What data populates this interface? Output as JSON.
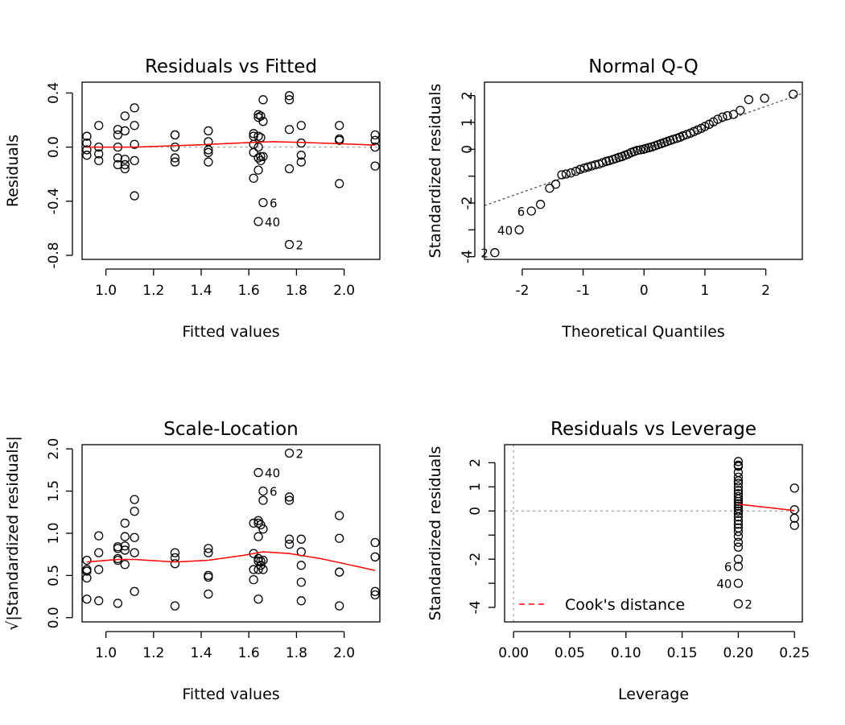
{
  "chart_data": [
    {
      "id": "rvf",
      "type": "scatter",
      "title": "Residuals vs Fitted",
      "xlabel": "Fitted values",
      "ylabel": "Residuals",
      "xlim": [
        0.9,
        2.15
      ],
      "ylim": [
        -0.83,
        0.48
      ],
      "xticks": [
        1.0,
        1.2,
        1.4,
        1.6,
        1.8,
        2.0
      ],
      "xtick_labels": [
        "1.0",
        "1.2",
        "1.4",
        "1.6",
        "1.8",
        "2.0"
      ],
      "yticks": [
        -0.8,
        -0.4,
        0.0,
        0.4
      ],
      "ytick_labels": [
        "-0.8",
        "-0.4",
        "0.0",
        "0.4"
      ],
      "hline": 0,
      "points": [
        [
          0.92,
          0.08
        ],
        [
          0.92,
          0.03
        ],
        [
          0.92,
          -0.02
        ],
        [
          0.92,
          -0.06
        ],
        [
          0.97,
          0.16
        ],
        [
          0.97,
          0.0
        ],
        [
          0.97,
          -0.05
        ],
        [
          0.97,
          -0.1
        ],
        [
          1.05,
          0.13
        ],
        [
          1.05,
          0.09
        ],
        [
          1.05,
          0.0
        ],
        [
          1.05,
          -0.08
        ],
        [
          1.05,
          -0.13
        ],
        [
          1.08,
          0.23
        ],
        [
          1.08,
          0.12
        ],
        [
          1.08,
          -0.09
        ],
        [
          1.08,
          -0.13
        ],
        [
          1.08,
          -0.16
        ],
        [
          1.12,
          0.29
        ],
        [
          1.12,
          0.16
        ],
        [
          1.12,
          0.02
        ],
        [
          1.12,
          -0.1
        ],
        [
          1.12,
          -0.36
        ],
        [
          1.29,
          0.09
        ],
        [
          1.29,
          0.09
        ],
        [
          1.29,
          0.0
        ],
        [
          1.29,
          -0.08
        ],
        [
          1.29,
          -0.11
        ],
        [
          1.43,
          0.12
        ],
        [
          1.43,
          0.04
        ],
        [
          1.43,
          -0.02
        ],
        [
          1.43,
          -0.04
        ],
        [
          1.43,
          -0.11
        ],
        [
          1.62,
          0.1
        ],
        [
          1.62,
          0.08
        ],
        [
          1.62,
          0.02
        ],
        [
          1.62,
          -0.04
        ],
        [
          1.62,
          -0.23
        ],
        [
          1.64,
          0.24
        ],
        [
          1.64,
          0.22
        ],
        [
          1.64,
          0.08
        ],
        [
          1.64,
          0.0
        ],
        [
          1.64,
          -0.08
        ],
        [
          1.64,
          -0.17
        ],
        [
          1.64,
          -0.55
        ],
        [
          1.65,
          0.23
        ],
        [
          1.65,
          0.07
        ],
        [
          1.65,
          -0.07
        ],
        [
          1.65,
          -0.1
        ],
        [
          1.66,
          0.35
        ],
        [
          1.66,
          0.19
        ],
        [
          1.66,
          -0.07
        ],
        [
          1.66,
          -0.41
        ],
        [
          1.77,
          0.38
        ],
        [
          1.77,
          0.35
        ],
        [
          1.77,
          0.13
        ],
        [
          1.77,
          -0.16
        ],
        [
          1.77,
          -0.72
        ],
        [
          1.82,
          0.16
        ],
        [
          1.82,
          0.03
        ],
        [
          1.82,
          -0.06
        ],
        [
          1.82,
          -0.11
        ],
        [
          1.98,
          0.16
        ],
        [
          1.98,
          0.06
        ],
        [
          1.98,
          0.05
        ],
        [
          1.98,
          -0.27
        ],
        [
          2.13,
          0.09
        ],
        [
          2.13,
          0.05
        ],
        [
          2.13,
          0.0
        ],
        [
          2.13,
          -0.14
        ]
      ],
      "smooth": [
        [
          0.92,
          0.0
        ],
        [
          1.12,
          0.0
        ],
        [
          1.29,
          0.01
        ],
        [
          1.43,
          0.02
        ],
        [
          1.62,
          0.035
        ],
        [
          1.7,
          0.04
        ],
        [
          1.82,
          0.035
        ],
        [
          1.98,
          0.025
        ],
        [
          2.13,
          0.015
        ]
      ],
      "labels": [
        {
          "text": "6",
          "x": 1.66,
          "y": -0.41
        },
        {
          "text": "40",
          "x": 1.64,
          "y": -0.55
        },
        {
          "text": "2",
          "x": 1.77,
          "y": -0.72
        }
      ]
    },
    {
      "id": "qq",
      "type": "scatter",
      "title": "Normal Q-Q",
      "xlabel": "Theoretical Quantiles",
      "ylabel": "Standardized residuals",
      "xlim": [
        -2.62,
        2.6
      ],
      "ylim": [
        -4.1,
        2.5
      ],
      "xticks": [
        -2,
        -1,
        0,
        1,
        2
      ],
      "xtick_labels": [
        "-2",
        "-1",
        "0",
        "1",
        "2"
      ],
      "yticks": [
        -4,
        -3,
        -2,
        -1,
        0,
        1,
        2
      ],
      "ytick_labels": [
        "-4",
        "",
        "-2",
        "",
        "0",
        "1",
        "2"
      ],
      "refline": {
        "intercept": 0,
        "slope": 0.8
      },
      "points": [
        [
          -2.45,
          -3.85
        ],
        [
          -2.05,
          -3.0
        ],
        [
          -1.85,
          -2.3
        ],
        [
          -1.7,
          -2.05
        ],
        [
          -1.55,
          -1.45
        ],
        [
          -1.45,
          -1.3
        ],
        [
          -1.35,
          -0.95
        ],
        [
          -1.28,
          -0.92
        ],
        [
          -1.2,
          -0.88
        ],
        [
          -1.12,
          -0.82
        ],
        [
          -1.05,
          -0.75
        ],
        [
          -0.98,
          -0.7
        ],
        [
          -0.92,
          -0.66
        ],
        [
          -0.86,
          -0.62
        ],
        [
          -0.8,
          -0.58
        ],
        [
          -0.74,
          -0.55
        ],
        [
          -0.68,
          -0.5
        ],
        [
          -0.62,
          -0.45
        ],
        [
          -0.57,
          -0.42
        ],
        [
          -0.51,
          -0.38
        ],
        [
          -0.46,
          -0.34
        ],
        [
          -0.41,
          -0.3
        ],
        [
          -0.36,
          -0.27
        ],
        [
          -0.31,
          -0.22
        ],
        [
          -0.26,
          -0.18
        ],
        [
          -0.21,
          -0.12
        ],
        [
          -0.16,
          -0.08
        ],
        [
          -0.11,
          -0.04
        ],
        [
          -0.06,
          -0.02
        ],
        [
          -0.01,
          0.0
        ],
        [
          0.03,
          0.03
        ],
        [
          0.08,
          0.06
        ],
        [
          0.13,
          0.09
        ],
        [
          0.18,
          0.13
        ],
        [
          0.23,
          0.17
        ],
        [
          0.28,
          0.21
        ],
        [
          0.33,
          0.25
        ],
        [
          0.38,
          0.29
        ],
        [
          0.43,
          0.33
        ],
        [
          0.48,
          0.37
        ],
        [
          0.54,
          0.41
        ],
        [
          0.59,
          0.45
        ],
        [
          0.64,
          0.5
        ],
        [
          0.7,
          0.55
        ],
        [
          0.76,
          0.6
        ],
        [
          0.82,
          0.66
        ],
        [
          0.88,
          0.72
        ],
        [
          0.94,
          0.78
        ],
        [
          1.0,
          0.85
        ],
        [
          1.07,
          0.93
        ],
        [
          1.14,
          1.02
        ],
        [
          1.21,
          1.12
        ],
        [
          1.29,
          1.2
        ],
        [
          1.37,
          1.25
        ],
        [
          1.47,
          1.3
        ],
        [
          1.58,
          1.45
        ],
        [
          1.72,
          1.85
        ],
        [
          1.98,
          1.9
        ],
        [
          2.45,
          2.05
        ]
      ],
      "labels": [
        {
          "text": "6",
          "x": -1.85,
          "y": -2.3
        },
        {
          "text": "40",
          "x": -2.05,
          "y": -3.0
        },
        {
          "text": "2",
          "x": -2.45,
          "y": -3.85
        }
      ]
    },
    {
      "id": "sl",
      "type": "scatter",
      "title": "Scale-Location",
      "xlabel": "Fitted values",
      "ylabel": "√|Standardized residuals|",
      "xlim": [
        0.9,
        2.15
      ],
      "ylim": [
        -0.05,
        2.05
      ],
      "xticks": [
        1.0,
        1.2,
        1.4,
        1.6,
        1.8,
        2.0
      ],
      "xtick_labels": [
        "1.0",
        "1.2",
        "1.4",
        "1.6",
        "1.8",
        "2.0"
      ],
      "yticks": [
        0.0,
        0.5,
        1.0,
        1.5,
        2.0
      ],
      "ytick_labels": [
        "0.0",
        "0.5",
        "1.0",
        "1.5",
        "2.0"
      ],
      "points": [
        [
          0.92,
          0.68
        ],
        [
          0.92,
          0.57
        ],
        [
          0.92,
          0.55
        ],
        [
          0.92,
          0.47
        ],
        [
          0.92,
          0.22
        ],
        [
          0.97,
          0.97
        ],
        [
          0.97,
          0.77
        ],
        [
          0.97,
          0.57
        ],
        [
          0.97,
          0.2
        ],
        [
          1.05,
          0.84
        ],
        [
          1.05,
          0.82
        ],
        [
          1.05,
          0.7
        ],
        [
          1.05,
          0.68
        ],
        [
          1.05,
          0.17
        ],
        [
          1.08,
          1.12
        ],
        [
          1.08,
          0.96
        ],
        [
          1.08,
          0.85
        ],
        [
          1.08,
          0.8
        ],
        [
          1.08,
          0.63
        ],
        [
          1.12,
          1.4
        ],
        [
          1.12,
          1.26
        ],
        [
          1.12,
          0.95
        ],
        [
          1.12,
          0.77
        ],
        [
          1.12,
          0.31
        ],
        [
          1.29,
          0.77
        ],
        [
          1.29,
          0.71
        ],
        [
          1.29,
          0.64
        ],
        [
          1.29,
          0.14
        ],
        [
          1.43,
          0.82
        ],
        [
          1.43,
          0.77
        ],
        [
          1.43,
          0.5
        ],
        [
          1.43,
          0.48
        ],
        [
          1.43,
          0.28
        ],
        [
          1.62,
          1.12
        ],
        [
          1.62,
          0.76
        ],
        [
          1.62,
          0.57
        ],
        [
          1.62,
          0.45
        ],
        [
          1.64,
          1.72
        ],
        [
          1.64,
          1.15
        ],
        [
          1.64,
          1.12
        ],
        [
          1.64,
          0.96
        ],
        [
          1.64,
          0.7
        ],
        [
          1.64,
          0.67
        ],
        [
          1.64,
          0.57
        ],
        [
          1.64,
          0.22
        ],
        [
          1.65,
          1.1
        ],
        [
          1.65,
          0.67
        ],
        [
          1.65,
          0.62
        ],
        [
          1.66,
          1.5
        ],
        [
          1.66,
          1.39
        ],
        [
          1.66,
          1.05
        ],
        [
          1.66,
          0.68
        ],
        [
          1.66,
          0.57
        ],
        [
          1.77,
          1.95
        ],
        [
          1.77,
          1.43
        ],
        [
          1.77,
          1.39
        ],
        [
          1.77,
          0.93
        ],
        [
          1.77,
          0.87
        ],
        [
          1.82,
          0.93
        ],
        [
          1.82,
          0.78
        ],
        [
          1.82,
          0.62
        ],
        [
          1.82,
          0.42
        ],
        [
          1.82,
          0.2
        ],
        [
          1.98,
          1.21
        ],
        [
          1.98,
          0.94
        ],
        [
          1.98,
          0.54
        ],
        [
          1.98,
          0.54
        ],
        [
          1.98,
          0.14
        ],
        [
          2.13,
          0.89
        ],
        [
          2.13,
          0.72
        ],
        [
          2.13,
          0.31
        ],
        [
          2.13,
          0.27
        ]
      ],
      "smooth": [
        [
          0.92,
          0.66
        ],
        [
          1.05,
          0.69
        ],
        [
          1.12,
          0.69
        ],
        [
          1.29,
          0.66
        ],
        [
          1.43,
          0.68
        ],
        [
          1.58,
          0.74
        ],
        [
          1.66,
          0.78
        ],
        [
          1.77,
          0.76
        ],
        [
          1.9,
          0.7
        ],
        [
          2.0,
          0.64
        ],
        [
          2.13,
          0.56
        ]
      ],
      "labels": [
        {
          "text": "2",
          "x": 1.77,
          "y": 1.95
        },
        {
          "text": "40",
          "x": 1.64,
          "y": 1.72
        },
        {
          "text": "6",
          "x": 1.66,
          "y": 1.5
        }
      ]
    },
    {
      "id": "rvl",
      "type": "scatter",
      "title": "Residuals vs Leverage",
      "xlabel": "Leverage",
      "ylabel": "Standardized residuals",
      "xlim": [
        -0.008,
        0.257
      ],
      "ylim": [
        -4.6,
        2.75
      ],
      "xticks": [
        0.0,
        0.05,
        0.1,
        0.15,
        0.2,
        0.25
      ],
      "xtick_labels": [
        "0.00",
        "0.05",
        "0.10",
        "0.15",
        "0.20",
        "0.25"
      ],
      "yticks": [
        -4,
        -3,
        -2,
        -1,
        0,
        1,
        2
      ],
      "ytick_labels": [
        "-4",
        "",
        "-2",
        "",
        "0",
        "1",
        "2"
      ],
      "hline": 0,
      "vline": 0,
      "legend": {
        "label": "Cook's distance",
        "position": "bottom-left"
      },
      "points": [
        [
          0.2,
          2.05
        ],
        [
          0.2,
          1.9
        ],
        [
          0.2,
          1.85
        ],
        [
          0.2,
          1.6
        ],
        [
          0.2,
          1.4
        ],
        [
          0.2,
          1.25
        ],
        [
          0.2,
          1.15
        ],
        [
          0.2,
          1.0
        ],
        [
          0.2,
          0.85
        ],
        [
          0.2,
          0.72
        ],
        [
          0.2,
          0.6
        ],
        [
          0.2,
          0.5
        ],
        [
          0.2,
          0.4
        ],
        [
          0.2,
          0.3
        ],
        [
          0.2,
          0.2
        ],
        [
          0.2,
          0.1
        ],
        [
          0.2,
          0.0
        ],
        [
          0.2,
          -0.1
        ],
        [
          0.2,
          -0.25
        ],
        [
          0.2,
          -0.4
        ],
        [
          0.2,
          -0.55
        ],
        [
          0.2,
          -0.7
        ],
        [
          0.2,
          -0.85
        ],
        [
          0.2,
          -1.05
        ],
        [
          0.2,
          -1.3
        ],
        [
          0.2,
          -1.5
        ],
        [
          0.2,
          -2.0
        ],
        [
          0.2,
          -2.3
        ],
        [
          0.2,
          -3.0
        ],
        [
          0.2,
          -3.85
        ],
        [
          0.25,
          0.95
        ],
        [
          0.25,
          0.05
        ],
        [
          0.25,
          -0.3
        ],
        [
          0.25,
          -0.6
        ]
      ],
      "smooth": [
        [
          0.2,
          0.28
        ],
        [
          0.25,
          0.02
        ]
      ],
      "labels": [
        {
          "text": "6",
          "x": 0.2,
          "y": -2.3,
          "side": "left"
        },
        {
          "text": "40",
          "x": 0.2,
          "y": -3.0,
          "side": "left"
        },
        {
          "text": "2",
          "x": 0.2,
          "y": -3.85,
          "side": "right"
        }
      ]
    }
  ]
}
